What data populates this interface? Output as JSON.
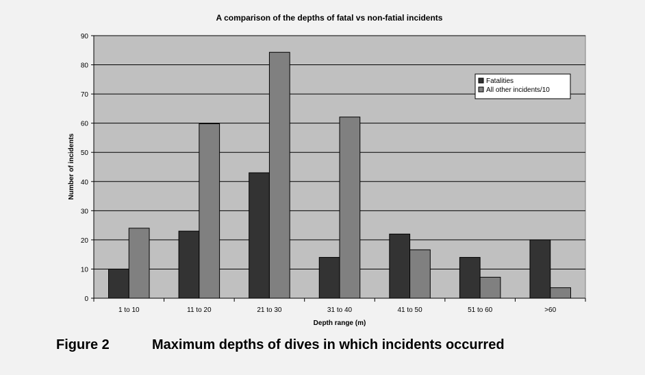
{
  "chart_data": {
    "type": "bar",
    "title": "A comparison of the depths of fatal vs non-fatial incidents",
    "xlabel": "Depth range (m)",
    "ylabel": "Number of incidents",
    "ylim": [
      0,
      90
    ],
    "yticks": [
      0,
      10,
      20,
      30,
      40,
      50,
      60,
      70,
      80,
      90
    ],
    "grid": true,
    "legend_position": "top-right",
    "categories": [
      "1 to 10",
      "11 to 20",
      "21 to 30",
      "31 to 40",
      "41 to 50",
      "51 to 60",
      ">60"
    ],
    "series": [
      {
        "name": "Fatalities",
        "color": "#333333",
        "values": [
          10,
          23,
          43,
          14,
          22,
          14,
          20
        ]
      },
      {
        "name": "All other incidents/10",
        "color": "#808080",
        "values": [
          24,
          59.8,
          84.3,
          62.1,
          16.6,
          7.2,
          3.6
        ]
      }
    ]
  },
  "caption": {
    "label": "Figure 2",
    "text": "Maximum depths of dives in which incidents occurred"
  },
  "colors": {
    "page_background": "#f2f2f2",
    "plot_background": "#c0c0c0"
  }
}
